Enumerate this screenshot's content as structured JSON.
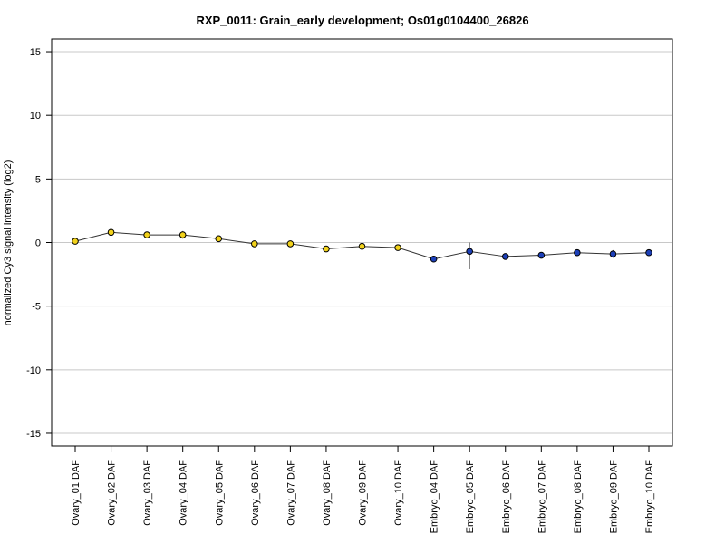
{
  "chart_data": {
    "type": "line",
    "title": "RXP_0011: Grain_early development; Os01g0104400_26826",
    "xlabel": "",
    "ylabel": "normalized Cy3 signal intensity (log2)",
    "ylim": [
      -16,
      16
    ],
    "yticks": [
      -15,
      -10,
      -5,
      0,
      5,
      10,
      15
    ],
    "grid": true,
    "categories": [
      "Ovary_01 DAF",
      "Ovary_02 DAF",
      "Ovary_03 DAF",
      "Ovary_04 DAF",
      "Ovary_05 DAF",
      "Ovary_06 DAF",
      "Ovary_07 DAF",
      "Ovary_08 DAF",
      "Ovary_09 DAF",
      "Ovary_10 DAF",
      "Embryo_04 DAF",
      "Embryo_05 DAF",
      "Embryo_06 DAF",
      "Embryo_07 DAF",
      "Embryo_08 DAF",
      "Embryo_09 DAF",
      "Embryo_10 DAF"
    ],
    "series": [
      {
        "values": [
          0.1,
          0.8,
          0.6,
          0.6,
          0.3,
          -0.1,
          -0.1,
          -0.5,
          -0.3,
          -0.4,
          -1.3,
          -0.7,
          -1.1,
          -1.0,
          -0.8,
          -0.9,
          -0.8
        ],
        "error_low": [
          0.1,
          0.8,
          0.6,
          0.3,
          0.3,
          -0.1,
          -0.1,
          -0.5,
          -0.3,
          -0.4,
          -1.3,
          -2.1,
          -1.1,
          -1.0,
          -0.8,
          -1.2,
          -0.8
        ],
        "error_high": [
          0.1,
          0.8,
          0.6,
          0.9,
          0.3,
          -0.1,
          -0.1,
          -0.5,
          -0.3,
          -0.4,
          -1.3,
          0.0,
          -1.1,
          -1.0,
          -0.8,
          -0.6,
          -0.8
        ],
        "marker_colors": [
          "#f2d21b",
          "#f2d21b",
          "#f2d21b",
          "#f2d21b",
          "#f2d21b",
          "#f2d21b",
          "#f2d21b",
          "#f2d21b",
          "#f2d21b",
          "#f2d21b",
          "#1c3fb8",
          "#1c3fb8",
          "#1c3fb8",
          "#1c3fb8",
          "#1c3fb8",
          "#1c3fb8",
          "#1c3fb8"
        ],
        "line_color": "#333333"
      }
    ]
  }
}
